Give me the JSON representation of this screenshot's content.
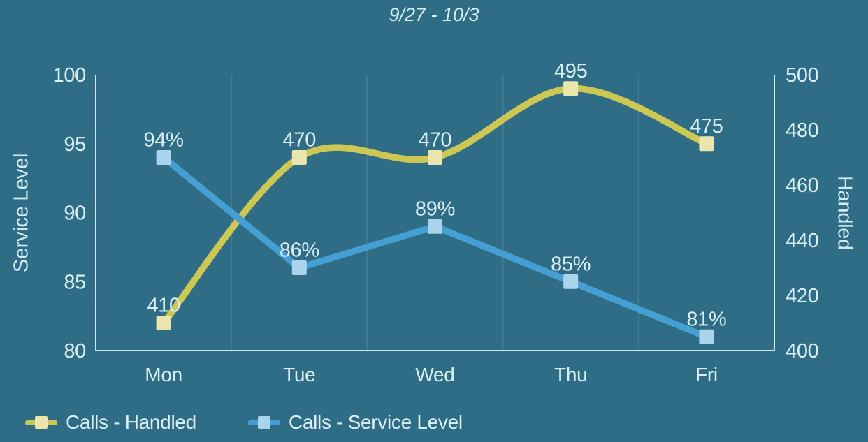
{
  "title": "9/27 - 10/3",
  "colors": {
    "background": "#2f6c86",
    "text": "#d9eff3",
    "grid": "#3f7d97",
    "axis_line": "#cfe9f0"
  },
  "chart_data": {
    "type": "line",
    "title": "9/27 - 10/3",
    "categories": [
      "Mon",
      "Tue",
      "Wed",
      "Thu",
      "Fri"
    ],
    "series": [
      {
        "name": "Calls - Handled",
        "axis": "right",
        "values": [
          410,
          470,
          470,
          495,
          475
        ],
        "point_labels": [
          "410",
          "470",
          "470",
          "495",
          "475"
        ],
        "line_color": "#cdc753",
        "marker_color": "#eae5ad",
        "smooth": true
      },
      {
        "name": "Calls - Service Level",
        "axis": "left",
        "values": [
          94,
          86,
          89,
          85,
          81
        ],
        "point_labels": [
          "94%",
          "86%",
          "89%",
          "85%",
          "81%"
        ],
        "line_color": "#469fd3",
        "marker_color": "#a9d4ec",
        "smooth": false
      }
    ],
    "left_axis": {
      "label": "Service Level",
      "min": 80,
      "max": 100,
      "tick_values": [
        100,
        95,
        90,
        85,
        80
      ]
    },
    "right_axis": {
      "label": "Handled",
      "min": 400,
      "max": 500,
      "tick_values": [
        500,
        480,
        460,
        440,
        420,
        400
      ]
    },
    "grid": "vertical-between-categories",
    "legend_position": "bottom-left"
  }
}
